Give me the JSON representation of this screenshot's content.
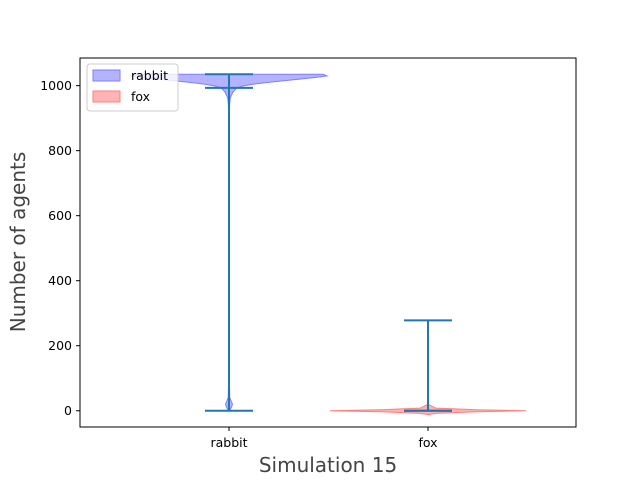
{
  "chart_data": {
    "type": "violin",
    "title": "",
    "xlabel": "Simulation 15",
    "ylabel": "Number of agents",
    "categories": [
      "rabbit",
      "fox"
    ],
    "ylim": [
      -50,
      1085
    ],
    "yticks": [
      0,
      200,
      400,
      600,
      800,
      1000
    ],
    "grid": false,
    "legend": {
      "position": "top-left",
      "entries": [
        {
          "label": "rabbit",
          "color": "#b3b3ff"
        },
        {
          "label": "fox",
          "color": "#ffb3b3"
        }
      ]
    },
    "series": [
      {
        "name": "rabbit",
        "min": 0,
        "max": 1035,
        "median": 993,
        "fill": "#b3b3ff",
        "edge": "#7f7fff",
        "density": [
          [
            1035,
            0.48
          ],
          [
            1030,
            0.5
          ],
          [
            1025,
            0.44
          ],
          [
            1020,
            0.36
          ],
          [
            1015,
            0.28
          ],
          [
            1010,
            0.2
          ],
          [
            1005,
            0.13
          ],
          [
            1000,
            0.08
          ],
          [
            995,
            0.05
          ],
          [
            990,
            0.035
          ],
          [
            980,
            0.02
          ],
          [
            970,
            0.012
          ],
          [
            960,
            0.006
          ],
          [
            940,
            0.003
          ],
          [
            900,
            0.002
          ],
          [
            800,
            0.0015
          ],
          [
            600,
            0.0015
          ],
          [
            400,
            0.0015
          ],
          [
            200,
            0.0015
          ],
          [
            100,
            0.002
          ],
          [
            40,
            0.004
          ],
          [
            20,
            0.018
          ],
          [
            10,
            0.012
          ],
          [
            0,
            0.002
          ]
        ]
      },
      {
        "name": "fox",
        "min": 0,
        "max": 278,
        "median": 0,
        "fill": "#ffb3b3",
        "edge": "#ff7f7f",
        "density": [
          [
            278,
            0.0
          ],
          [
            100,
            0.0
          ],
          [
            20,
            0.0
          ],
          [
            8,
            0.04
          ],
          [
            3,
            0.25
          ],
          [
            0,
            0.5
          ],
          [
            -3,
            0.25
          ],
          [
            -8,
            0.04
          ],
          [
            -12,
            0.0
          ]
        ]
      }
    ],
    "line_color": "#1f77b4"
  }
}
